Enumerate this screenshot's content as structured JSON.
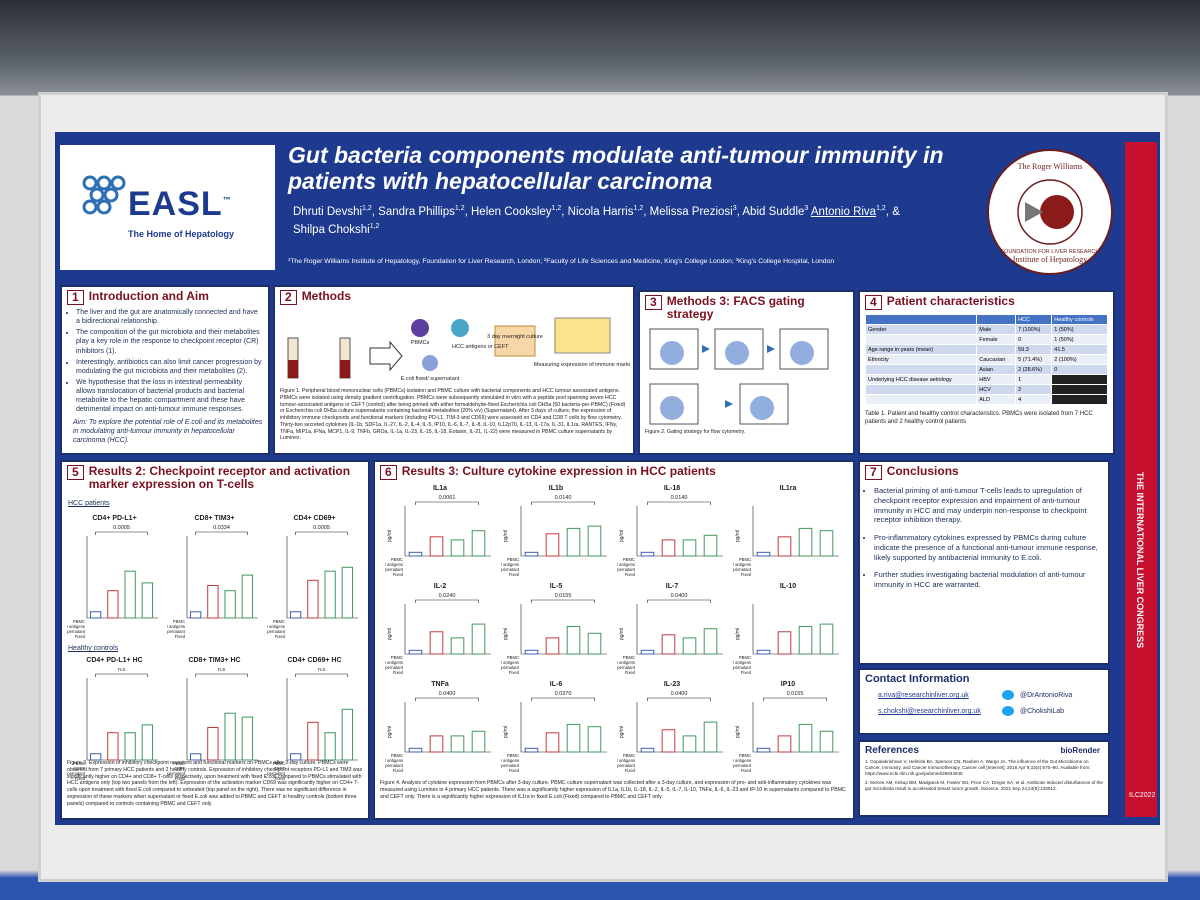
{
  "header": {
    "logo_name": "EASL",
    "logo_tm": "™",
    "logo_tagline": "The Home of Hepatology",
    "title": "Gut bacteria components modulate anti-tumour immunity in patients with hepatocellular carcinoma",
    "authors": [
      {
        "name": "Dhruti Devshi",
        "affil": "1,2"
      },
      {
        "name": "Sandra Phillips",
        "affil": "1,2"
      },
      {
        "name": "Helen Cooksley",
        "affil": "1,2"
      },
      {
        "name": "Nicola Harris",
        "affil": "1,2"
      },
      {
        "name": "Melissa Preziosi",
        "affil": "3"
      },
      {
        "name": "Abid Suddle",
        "affil": "3"
      },
      {
        "name": "Antonio Riva",
        "affil": "1,2"
      },
      {
        "name": "& Shilpa Chokshi",
        "affil": "1,2"
      }
    ],
    "affiliations": "¹The Roger Williams Institute of Hepatology, Foundation for Liver Research, London; ²Faculty of Life Sciences and Medicine, King's College London; ³King's College Hospital, London",
    "seal_top": "The Roger Williams",
    "seal_bottom": "Institute of Hepatology",
    "seal_ring": "FOUNDATION FOR LIVER RESEARCH",
    "strip_text": "THE INTERNATIONAL LIVER CONGRESS",
    "strip_code": "ILC2022"
  },
  "sections": {
    "intro": {
      "num": "1",
      "heading": "Introduction and Aim",
      "bullets": [
        "The liver and the gut are anatomically connected and have a bidirectional relationship.",
        "The composition of the gut microbiota and their metabolites play a key role in the response to checkpoint receptor (CR) inhibitors (1).",
        "Interestingly, antibiotics can also limit cancer progression by modulating the gut microbiota and their metabolites (2).",
        "We hypothesise that the loss in intestinal permeability allows translocation of bacterial products and bacterial metabolite to the hepatic compartment and these have detrimental impact on anti-tumour immune responses."
      ],
      "aim": "Aim: To explore the potential role of E.coli and its metabolites in modulating anti-tumour immunity in hepatocellular carcinoma (HCC)."
    },
    "methods": {
      "num": "2",
      "heading": "Methods",
      "labels": [
        "PBMCs",
        "HCC antigens or CEFT",
        "E.coli fixed/ supernatant",
        "3 day overnight culture",
        "Measuring expression of immune markers"
      ],
      "caption": "Figure 1. Peripheral blood mononuclear cells (PBMCs) isolation and PBMC culture with bacterial components and HCC tumour associated antigens. PBMCs were isolated using density gradient centrifugation. PBMCs were subsequently stimulated in vitro with a peptide pool spanning seven HCC tumour-associated antigens or CEFT (control) after being primed with either formaldehyde-fixed Escherichia coli DH5a (50 bacteria-per-PBMC) (Fixed) or Escherichia coli DH5a culture supernatants containing bacterial metabolites (20% v/v) (Supernatant). After 3 days of culture, the expression of inhibitory immune checkpoints and functional markers (including PD-L1, TIM-3 and CD69) were assessed on CD4 and CD8 T cells by flow cytometry. Thirty-two secreted cytokines (IL-1b, SDF1a, IL-27, IL-2, IL-4, IL-5, IP10, IL-6, IL-7, IL-8, IL-10, IL12p70, IL-13, IL-17a, IL-31, IL1ra, RANTES, IFNy, TNFa, MIP1a, IFNa, MCP1, IL-9, TNFb, GROa, IL-1a, IL-23, IL-15, IL-18, Eotaxin, IL-21, IL-22) were measured in PBMC culture supernatants by Luminex."
    },
    "facs": {
      "num": "3",
      "heading": "Methods 3: FACS gating strategy",
      "caption": "Figure 2. Gating strategy for flow cytometry."
    },
    "patients": {
      "num": "4",
      "heading": "Patient characteristics",
      "table": {
        "header": [
          "HCC",
          "Healthy controls"
        ],
        "rows": [
          [
            "Gender",
            "Male",
            "7 (100%)",
            "1 (50%)"
          ],
          [
            null,
            "Female",
            "0",
            "1 (50%)"
          ],
          [
            "Age range in years (mean)",
            null,
            "59.3",
            "41.5"
          ],
          [
            "Ethnicity",
            "Caucasian",
            "5 (71.4%)",
            "2 (100%)"
          ],
          [
            null,
            "Asian",
            "2 (28.6%)",
            "0"
          ],
          [
            "Underlying HCC disease aetiology",
            "HBV",
            "1",
            null
          ],
          [
            null,
            "HCV",
            "2",
            null
          ],
          [
            null,
            "ALD",
            "4",
            null
          ]
        ]
      },
      "caption": "Table 1. Patient and healthy control characteristics. PBMCs were isolated from 7 HCC patients and 2 healthy control patients"
    },
    "results2": {
      "num": "5",
      "heading": "Results 2: Checkpoint receptor and activation marker expression on T-cells",
      "group1": "HCC patients",
      "group2": "Healthy controls",
      "xlabels": [
        "PBMC",
        "Tumour antigens",
        "Supernatant",
        "Fixed"
      ],
      "xlabels_hc": [
        "PBMC",
        "CEFT",
        "Supernatant",
        "Fixed"
      ],
      "plots": [
        {
          "title": "CD4+ PD-L1+",
          "p": "0.0005"
        },
        {
          "title": "CD8+ TIM3+",
          "p": "0.0334"
        },
        {
          "title": "CD4+ CD69+",
          "p": "0.0005"
        },
        {
          "title": "CD4+ PD-L1+ HC",
          "p": "n.s"
        },
        {
          "title": "CD8+ TIM3+ HC",
          "p": "n.s"
        },
        {
          "title": "CD4+ CD69+ HC",
          "p": "n.s"
        }
      ],
      "caption": "Figure 3. Expression of inhibitory checkpoint receptors and functional markers on PBMCs after 3-day culture. PBMCs were obtained from 7 primary HCC patients and 2 healthy controls. Expression of inhibitory checkpoint receptors PD-L1 and TIM3 was significantly higher on CD4+ and CD8+ T-cells respectively, upon treatment with fixed E.coli compared to PBMCs stimulated with HCC antigens only (top two panels from the left). Expression of the activation marker CD69 was significantly higher on CD4+ T-cells upon treatment with fixed E.coli compared to untreated (top panel on the right). There was no significant difference in expression of these markers when supernatant or fixed E.coli was added to PBMC and CEFT in healthy controls (bottom three panels) compared to controls containing PBMC and CEFT only."
    },
    "results3": {
      "num": "6",
      "heading": "Results 3: Culture cytokine expression in HCC patients",
      "ylabel": "pg/ml",
      "xlabels": [
        "PBMC",
        "Tumour antigens",
        "Supernatant",
        "Fixed"
      ],
      "plots": [
        {
          "title": "IL1a",
          "p": "0.0061"
        },
        {
          "title": "IL1b",
          "p": "0.0140"
        },
        {
          "title": "IL-18",
          "p": "0.0140"
        },
        {
          "title": "IL1ra"
        },
        {
          "title": "IL-2",
          "p": "0.0240"
        },
        {
          "title": "IL-5",
          "p": "0.0155"
        },
        {
          "title": "IL-7",
          "p": "0.0400"
        },
        {
          "title": "IL-10"
        },
        {
          "title": "TNFa",
          "p": "0.0400"
        },
        {
          "title": "IL-6",
          "p": "0.0370"
        },
        {
          "title": "IL-23",
          "p": "0.0400"
        },
        {
          "title": "IP10",
          "p": "0.0155"
        }
      ],
      "caption": "Figure 4. Analysis of cytokine expression from PBMCs after 3-day culture. PBMC culture supernatant was collected after a 3-day culture, and expression of pro- and anti-inflammatory cytokines was measured using Luminex in 4 primary HCC patients. There was a significantly higher expression of IL1a, IL1b, IL-18, IL-2, IL-5, IL-7, IL-10, TNFa, IL-6, IL-23 and IP-10 in supernatants compared to PBMC and CEFT only. There is a significantly higher expression of IL1ra in fixed E.coli (Fixed) compared to PBMC and CEFT only."
    },
    "conclusions": {
      "num": "7",
      "heading": "Conclusions",
      "bullets": [
        "Bacterial priming of anti-tumour T-cells leads to upregulation of checkpoint receptor expression and impairment of anti-tumour immunity in HCC and may underpin non-response to checkpoint receptor inhibition therapy.",
        "Pro-inflammatory cytokines expressed by PBMCs during culture indicate the presence of a functional anti-tumour immune response, likely supported by antibacterial immunity to E.coli.",
        "Further studies investigating bacterial modulation of anti-tumour immunity in HCC are warranted."
      ]
    },
    "contact": {
      "heading": "Contact Information",
      "emails": [
        "a.riva@researchinliver.org.uk",
        "s.chokshi@researchinliver.org.uk"
      ],
      "twitter": [
        "@DrAntonioRiva",
        "@ChokshiLab"
      ]
    },
    "references": {
      "heading": "References",
      "credit": "bioRender",
      "items": [
        "1. Gopalakrishnan V, Helmink BA, Spencer CN, Reuben A, Wargo JA. The influence of the Gut Microbiome on Cancer, Immunity, and Cancer Immunotherapy. Cancer cell [Internet]. 2018 Apr 9;33(4):570–80. Available from: https://www.ncbi.nlm.nih.gov/pubmed/29634945",
        "2. McKee AM, Kirkup BM, Madgwick M, Fowler WJ, Price CA, Dreger SA, et al. Antibiotic-induced disturbances of the gut microbiota result in accelerated breast tumor growth. iScience. 2021 Sep 24;24(9):103012."
      ]
    }
  }
}
